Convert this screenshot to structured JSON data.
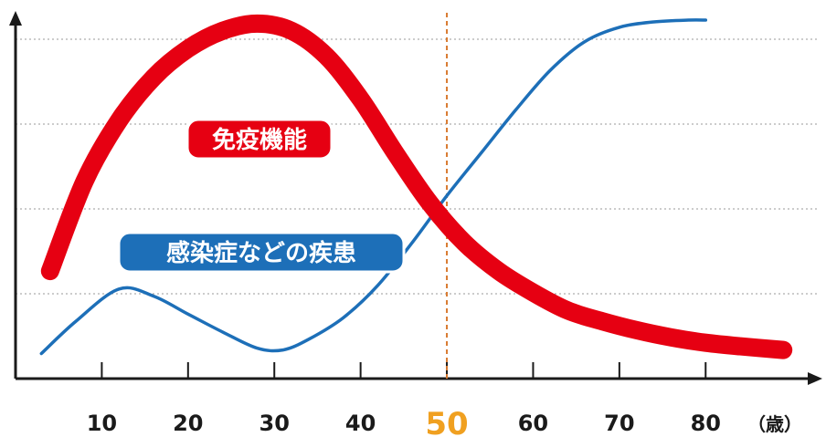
{
  "chart_data": {
    "type": "line",
    "x_unit_label": "（歳）",
    "x_ticks": [
      10,
      20,
      30,
      40,
      50,
      60,
      70,
      80
    ],
    "highlight_x": 50,
    "xlim": [
      0,
      93
    ],
    "ylim": [
      0,
      100
    ],
    "grid": "horizontal-dotted",
    "series": [
      {
        "name": "免疫機能",
        "color": "#e60012",
        "x": [
          4,
          8,
          12,
          16,
          20,
          24,
          28,
          32,
          36,
          40,
          44,
          48,
          52,
          56,
          60,
          64,
          68,
          72,
          76,
          80,
          84,
          89
        ],
        "y": [
          30,
          55,
          72,
          84,
          92,
          97,
          99,
          97,
          90,
          78,
          63,
          49,
          38,
          30,
          24,
          19,
          16,
          13.5,
          11.5,
          10,
          9,
          8
        ]
      },
      {
        "name": "感染症などの疾患",
        "color": "#1d6fb8",
        "x": [
          3,
          7,
          12,
          16,
          20,
          24,
          28,
          31,
          34,
          38,
          42,
          46,
          50,
          54,
          58,
          62,
          66,
          70,
          74,
          78,
          80
        ],
        "y": [
          7,
          16,
          25,
          23,
          18,
          13,
          8.5,
          8,
          11,
          17,
          26,
          38,
          51,
          63,
          75,
          86,
          94,
          98,
          99.5,
          100,
          100
        ]
      }
    ]
  }
}
